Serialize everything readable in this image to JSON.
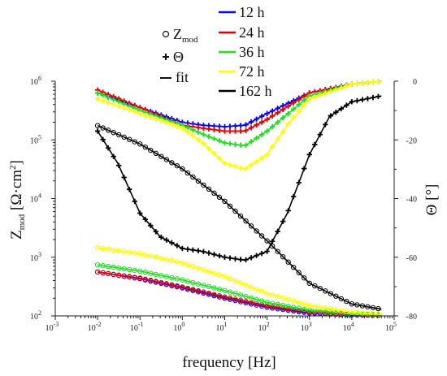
{
  "chart_data": {
    "type": "line",
    "x_scale": "log",
    "xlabel": "frequency [Hz]",
    "xlim": [
      0.001,
      100000
    ],
    "x_ticks": [
      {
        "base": "10",
        "exp": "-3"
      },
      {
        "base": "10",
        "exp": "-2"
      },
      {
        "base": "10",
        "exp": "-1"
      },
      {
        "base": "10",
        "exp": "0"
      },
      {
        "base": "10",
        "exp": "1"
      },
      {
        "base": "10",
        "exp": "2"
      },
      {
        "base": "10",
        "exp": "3"
      },
      {
        "base": "10",
        "exp": "4"
      },
      {
        "base": "10",
        "exp": "5"
      }
    ],
    "y_left": {
      "label": "Z",
      "label_sub": "mod",
      "label_units": " [Ω·cm",
      "label_units_sup": "2",
      "label_units_end": "]",
      "scale": "log",
      "lim": [
        100,
        1000000
      ],
      "ticks": [
        {
          "base": "10",
          "exp": "2"
        },
        {
          "base": "10",
          "exp": "3"
        },
        {
          "base": "10",
          "exp": "4"
        },
        {
          "base": "10",
          "exp": "5"
        },
        {
          "base": "10",
          "exp": "6"
        }
      ]
    },
    "y_right": {
      "label": "Θ [°]",
      "scale": "linear",
      "lim": [
        -80,
        0
      ],
      "ticks": [
        "0",
        "-20",
        "-40",
        "-60",
        "-80"
      ]
    },
    "legend": {
      "placement": "top-center",
      "markers": [
        {
          "symbol": "○",
          "text": "Z",
          "sub": "mod"
        },
        {
          "symbol": "+",
          "text": "Θ",
          "sub": ""
        },
        {
          "symbol": "—",
          "text": "fit",
          "sub": ""
        }
      ],
      "series": [
        {
          "name": "12 h",
          "color": "#0000ff"
        },
        {
          "name": "24 h",
          "color": "#e00000"
        },
        {
          "name": "36 h",
          "color": "#22dd22"
        },
        {
          "name": "72 h",
          "color": "#ffff00"
        },
        {
          "name": "162 h",
          "color": "#000000"
        }
      ]
    },
    "series": [
      {
        "name": "12 h",
        "color": "#0000ff",
        "Z": {
          "x": [
            0.01,
            0.1,
            1,
            10,
            100,
            1000,
            10000,
            50000
          ],
          "y": [
            560,
            430,
            300,
            200,
            140,
            112,
            104,
            102
          ]
        },
        "Theta": {
          "x": [
            0.01,
            0.1,
            1,
            3,
            10,
            30,
            100,
            1000,
            10000,
            50000
          ],
          "y": [
            -4,
            -9,
            -14,
            -15,
            -15.5,
            -15,
            -11,
            -4,
            -1,
            0
          ]
        }
      },
      {
        "name": "24 h",
        "color": "#e00000",
        "Z": {
          "x": [
            0.01,
            0.1,
            1,
            10,
            100,
            1000,
            10000,
            50000
          ],
          "y": [
            560,
            440,
            310,
            210,
            148,
            116,
            106,
            103
          ]
        },
        "Theta": {
          "x": [
            0.01,
            0.1,
            1,
            3,
            10,
            30,
            100,
            1000,
            10000,
            50000
          ],
          "y": [
            -3,
            -9,
            -15,
            -16,
            -17,
            -17,
            -13,
            -4,
            -1,
            0
          ]
        }
      },
      {
        "name": "36 h",
        "color": "#22dd22",
        "Z": {
          "x": [
            0.01,
            0.1,
            1,
            10,
            100,
            1000,
            10000,
            50000
          ],
          "y": [
            740,
            580,
            410,
            270,
            170,
            125,
            108,
            104
          ]
        },
        "Theta": {
          "x": [
            0.01,
            0.1,
            1,
            3,
            10,
            30,
            100,
            1000,
            10000,
            50000
          ],
          "y": [
            -4,
            -10,
            -15,
            -18,
            -21,
            -22,
            -17,
            -5,
            -1,
            0
          ]
        }
      },
      {
        "name": "72 h",
        "color": "#ffff00",
        "Z": {
          "x": [
            0.01,
            0.1,
            1,
            10,
            100,
            1000,
            10000,
            50000
          ],
          "y": [
            1450,
            1150,
            800,
            470,
            240,
            150,
            115,
            106
          ]
        },
        "Theta": {
          "x": [
            0.01,
            0.1,
            1,
            3,
            10,
            30,
            100,
            300,
            1000,
            10000,
            50000
          ],
          "y": [
            -6,
            -11,
            -16,
            -21,
            -28,
            -30,
            -25,
            -15,
            -6,
            -1,
            0
          ]
        }
      },
      {
        "name": "162 h",
        "color": "#000000",
        "Z": {
          "x": [
            0.01,
            0.1,
            1,
            10,
            100,
            1000,
            10000,
            50000
          ],
          "y": [
            175000,
            85000,
            32000,
            9000,
            1900,
            360,
            160,
            130
          ]
        },
        "Theta": {
          "x": [
            0.01,
            0.03,
            0.1,
            0.3,
            1,
            3,
            10,
            30,
            100,
            300,
            1000,
            3000,
            10000,
            50000
          ],
          "y": [
            -17,
            -28,
            -45,
            -53,
            -57,
            -58,
            -60,
            -61,
            -58,
            -45,
            -25,
            -12,
            -7,
            -5
          ]
        }
      }
    ]
  }
}
